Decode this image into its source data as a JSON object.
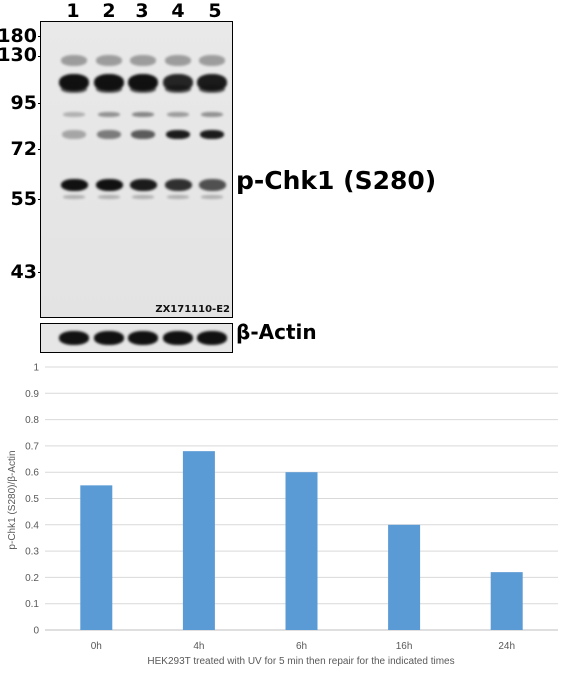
{
  "blot": {
    "lanes": [
      "1",
      "2",
      "3",
      "4",
      "5"
    ],
    "markers": [
      "180",
      "130",
      "95",
      "72",
      "55",
      "43"
    ],
    "code": "ZX171110-E2",
    "target_label": "p-Chk1 (S280)",
    "loading_control_label": "β-Actin",
    "colors": {
      "band": "#111111",
      "membrane": "#e6e6e6"
    }
  },
  "chart_data": {
    "type": "bar",
    "categories": [
      "0h",
      "4h",
      "6h",
      "16h",
      "24h"
    ],
    "series": [
      {
        "values": [
          0.55,
          0.68,
          0.6,
          0.4,
          0.22
        ]
      }
    ],
    "title": "",
    "xlabel": "HEK293T treated with UV for 5 min then repair for the indicated times",
    "ylabel": "p-Chk1 (S280)/β-Actin",
    "ylim": [
      0,
      1
    ],
    "yticks": [
      "0",
      "0.1",
      "0.2",
      "0.3",
      "0.4",
      "0.5",
      "0.6",
      "0.7",
      "0.8",
      "0.9",
      "1"
    ],
    "grid": true,
    "legend": "none",
    "colors": {
      "bar": "#5b9bd5",
      "grid": "#d9d9d9",
      "axis": "#bfbfbf",
      "text": "#595959"
    }
  }
}
